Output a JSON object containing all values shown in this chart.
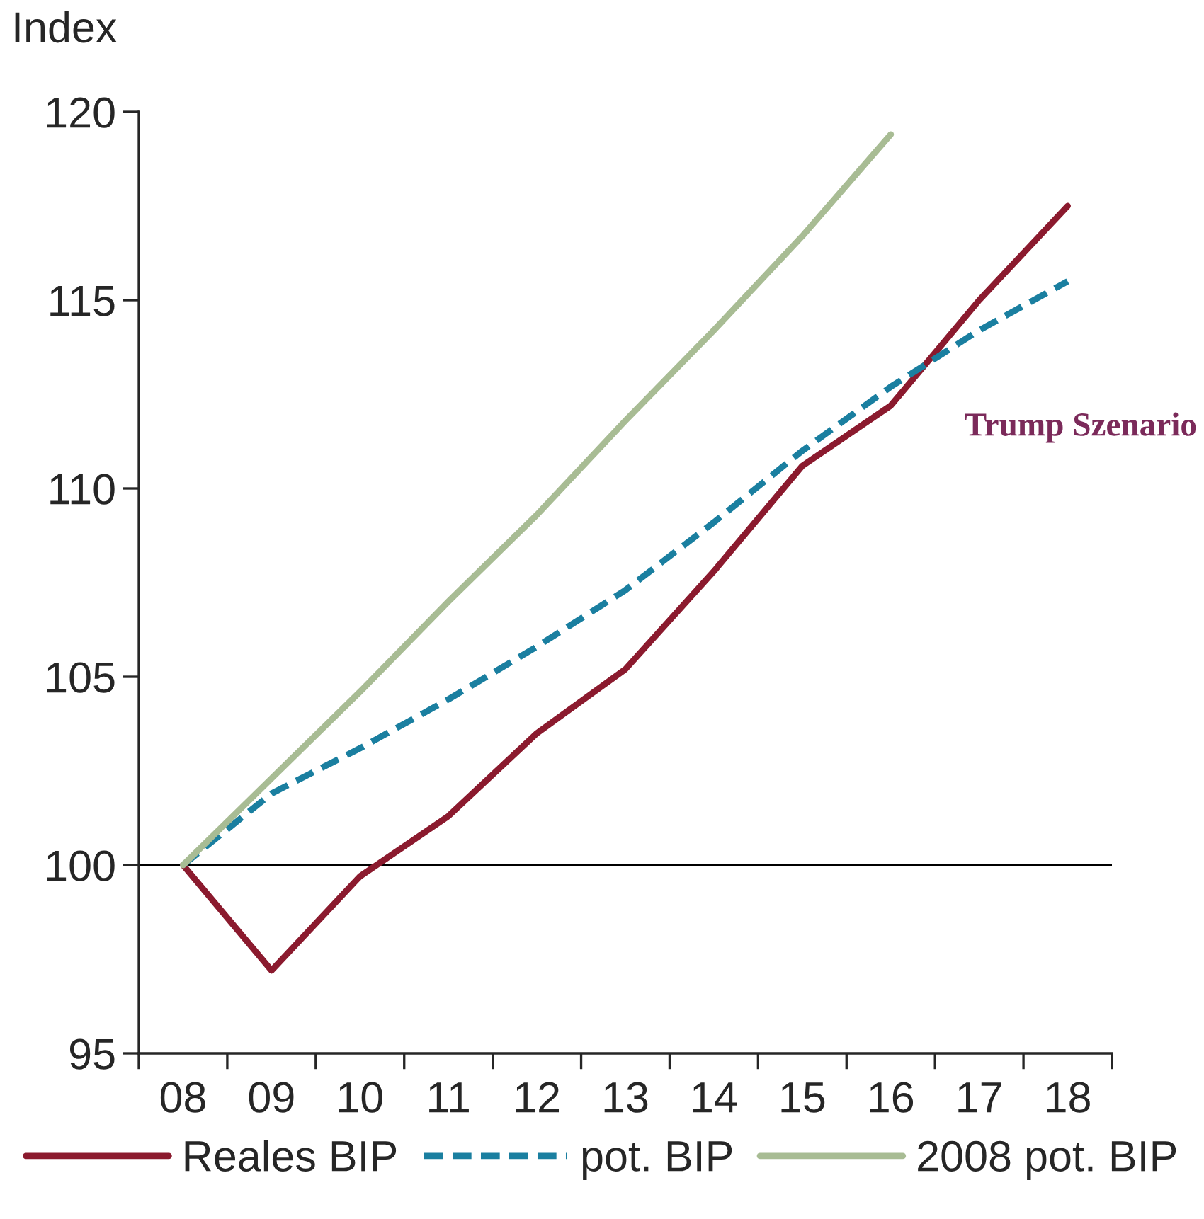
{
  "chart_data": {
    "type": "line",
    "ylabel": "Index",
    "categories": [
      "08",
      "09",
      "10",
      "11",
      "12",
      "13",
      "14",
      "15",
      "16",
      "17",
      "18"
    ],
    "series": [
      {
        "name": "Reales BIP",
        "color": "#8b1a2e",
        "line_style": "solid",
        "values": [
          100,
          97.2,
          99.7,
          101.3,
          103.5,
          105.2,
          107.8,
          110.6,
          112.2,
          115.0,
          117.5
        ]
      },
      {
        "name": "pot. BIP",
        "color": "#1a7fa0",
        "line_style": "dashed",
        "values": [
          100,
          101.9,
          103.1,
          104.4,
          105.8,
          107.3,
          109.1,
          111.0,
          112.7,
          114.2,
          115.5
        ]
      },
      {
        "name": "2008 pot. BIP",
        "color": "#a8bc94",
        "line_style": "solid",
        "values": [
          100,
          102.3,
          104.6,
          107.0,
          109.3,
          111.8,
          114.2,
          116.7,
          119.4,
          null,
          null
        ]
      }
    ],
    "ylim": [
      95,
      120
    ],
    "yticks": [
      95,
      100,
      105,
      110,
      115,
      120
    ],
    "ref_lines": [
      {
        "axis": "y",
        "value": 100,
        "color": "#000000"
      }
    ],
    "annotations": [
      "Trump Szenario"
    ],
    "grid": false,
    "legend": "bottom",
    "marker": "none"
  }
}
